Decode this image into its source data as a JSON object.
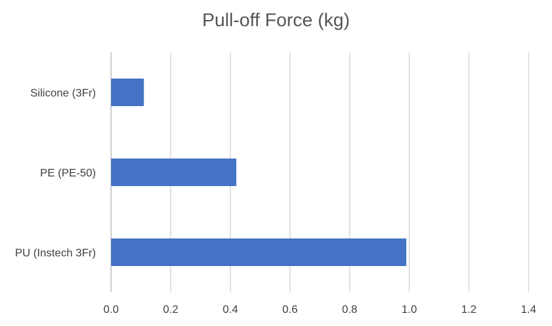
{
  "chart_data": {
    "type": "bar",
    "orientation": "horizontal",
    "title": "Pull-off Force (kg)",
    "categories": [
      "Silicone (3Fr)",
      "PE (PE-50)",
      "PU (Instech 3Fr)"
    ],
    "values": [
      0.11,
      0.42,
      0.99
    ],
    "xlim": [
      0,
      1.4
    ],
    "xticks": [
      "0.0",
      "0.2",
      "0.4",
      "0.6",
      "0.8",
      "1.0",
      "1.2",
      "1.4"
    ],
    "grid": true,
    "legend": "none",
    "bar_color": "#4472C4",
    "grid_color": "#D9D9D9"
  }
}
